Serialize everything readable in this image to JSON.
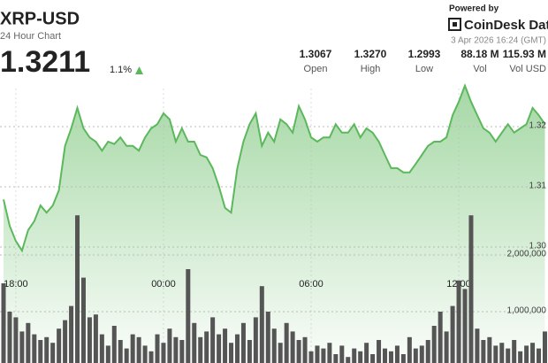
{
  "chart_data": {
    "type": "line",
    "title": "XRP-USD",
    "subtitle": "24 Hour Chart",
    "price": 1.3211,
    "change": "1.1%",
    "stats": [
      {
        "value": "1.3067",
        "label": "Open"
      },
      {
        "value": "1.3270",
        "label": "High"
      },
      {
        "value": "1.2993",
        "label": "Low"
      },
      {
        "value": "88.18 M",
        "label": "Vol"
      },
      {
        "value": "115.93 M",
        "label": "Vol USD"
      }
    ],
    "powered_by": "Powered by",
    "brand": "CoinDesk Data",
    "timestamp": "3 Apr 2026 16:24 (GMT)",
    "categories": [
      null,
      null,
      "18:00",
      null,
      null,
      null,
      null,
      null,
      null,
      null,
      null,
      null,
      null,
      null,
      null,
      null,
      null,
      null,
      null,
      null,
      null,
      null,
      null,
      null,
      null,
      null,
      "00:00",
      null,
      null,
      null,
      null,
      null,
      null,
      null,
      null,
      null,
      null,
      null,
      null,
      null,
      null,
      null,
      null,
      null,
      null,
      null,
      null,
      null,
      null,
      null,
      "06:00",
      null,
      null,
      null,
      null,
      null,
      null,
      null,
      null,
      null,
      null,
      null,
      null,
      null,
      null,
      null,
      null,
      null,
      null,
      null,
      null,
      null,
      null,
      null,
      "12:00",
      null,
      null,
      null,
      null,
      null,
      null,
      null,
      null,
      null,
      null,
      null,
      null,
      null,
      null
    ],
    "values": [
      1.3079,
      1.3035,
      1.301,
      1.2994,
      1.3028,
      1.3043,
      1.3069,
      1.3057,
      1.3069,
      1.3094,
      1.3168,
      1.3197,
      1.3231,
      1.3197,
      1.3182,
      1.3175,
      1.316,
      1.3175,
      1.3171,
      1.3182,
      1.3168,
      1.3168,
      1.316,
      1.3182,
      1.3197,
      1.3204,
      1.3222,
      1.3212,
      1.3175,
      1.3197,
      1.3175,
      1.3175,
      1.3153,
      1.3149,
      1.3131,
      1.3101,
      1.3065,
      1.3057,
      1.3131,
      1.3175,
      1.3204,
      1.3222,
      1.3168,
      1.319,
      1.3175,
      1.3212,
      1.3204,
      1.319,
      1.3234,
      1.3212,
      1.3182,
      1.3175,
      1.3182,
      1.3182,
      1.3204,
      1.319,
      1.319,
      1.3204,
      1.3182,
      1.3197,
      1.319,
      1.3175,
      1.3153,
      1.3131,
      1.3131,
      1.3124,
      1.3124,
      1.3138,
      1.3153,
      1.3168,
      1.3175,
      1.3175,
      1.3182,
      1.3219,
      1.3241,
      1.3268,
      1.3241,
      1.3219,
      1.3197,
      1.319,
      1.3175,
      1.319,
      1.3204,
      1.319,
      1.3197,
      1.3204,
      1.3231,
      1.3219,
      1.3204
    ],
    "color": "#5cb85c",
    "ylim": [
      1.28,
      1.33
    ],
    "yticks": [
      1.32,
      1.31,
      {
        "value": 1.3,
        "label": "1.30"
      }
    ],
    "volume": [
      1500000,
      1000000,
      900000,
      650000,
      800000,
      600000,
      500000,
      550000,
      450000,
      700000,
      850000,
      1100000,
      2700000,
      1600000,
      900000,
      950000,
      600000,
      400000,
      750000,
      500000,
      350000,
      600000,
      550000,
      400000,
      300000,
      600000,
      450000,
      700000,
      550000,
      500000,
      1750000,
      800000,
      550000,
      650000,
      900000,
      600000,
      700000,
      450000,
      600000,
      800000,
      500000,
      900000,
      1450000,
      1000000,
      700000,
      450000,
      800000,
      650000,
      500000,
      550000,
      300000,
      400000,
      350000,
      450000,
      250000,
      400000,
      200000,
      350000,
      300000,
      450000,
      250000,
      500000,
      350000,
      300000,
      400000,
      250000,
      550000,
      350000,
      400000,
      500000,
      750000,
      1000000,
      650000,
      1100000,
      1550000,
      1400000,
      2700000,
      700000,
      500000,
      550000,
      400000,
      450000,
      350000,
      500000,
      300000,
      400000,
      450000,
      350000,
      650000
    ],
    "volume_color": "#555555",
    "y2lim": [
      0,
      3000000
    ],
    "y2ticks": [
      {
        "value": 2000000,
        "label": "2,000,000"
      },
      {
        "value": 1000000,
        "label": "1,000,000"
      }
    ],
    "grid": true
  }
}
